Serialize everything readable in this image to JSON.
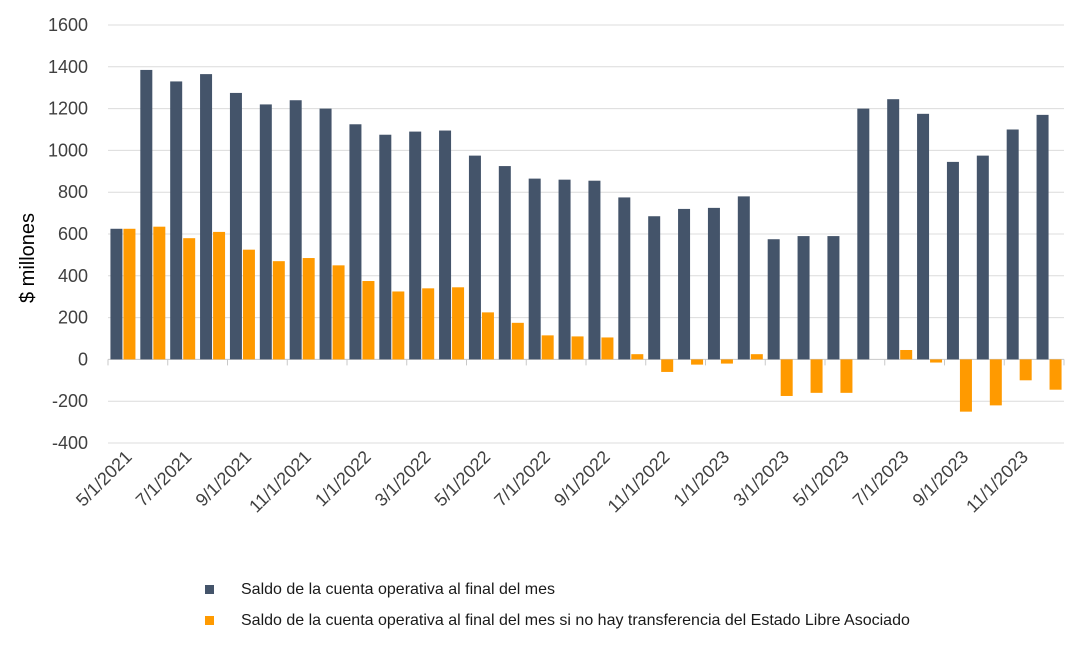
{
  "chart_data": {
    "type": "bar",
    "ylabel": "$ millones",
    "ylim": [
      -400,
      1600
    ],
    "yticks": [
      -400,
      -200,
      0,
      200,
      400,
      600,
      800,
      1000,
      1200,
      1400,
      1600
    ],
    "categories": [
      "5/1/2021",
      "6/1/2021",
      "7/1/2021",
      "8/1/2021",
      "9/1/2021",
      "10/1/2021",
      "11/1/2021",
      "12/1/2021",
      "1/1/2022",
      "2/1/2022",
      "3/1/2022",
      "4/1/2022",
      "5/1/2022",
      "6/1/2022",
      "7/1/2022",
      "8/1/2022",
      "9/1/2022",
      "10/1/2022",
      "11/1/2022",
      "12/1/2022",
      "1/1/2023",
      "2/1/2023",
      "3/1/2023",
      "4/1/2023",
      "5/1/2023",
      "6/1/2023",
      "7/1/2023",
      "8/1/2023",
      "9/1/2023",
      "10/1/2023",
      "11/1/2023",
      "12/1/2023"
    ],
    "xtick_labels": [
      "5/1/2021",
      "7/1/2021",
      "9/1/2021",
      "11/1/2021",
      "1/1/2022",
      "3/1/2022",
      "5/1/2022",
      "7/1/2022",
      "9/1/2022",
      "11/1/2022",
      "1/1/2023",
      "3/1/2023",
      "5/1/2023",
      "7/1/2023",
      "9/1/2023",
      "11/1/2023"
    ],
    "grid": true,
    "legend_position": "bottom",
    "series": [
      {
        "name": "Saldo de la cuenta operativa al final del mes",
        "color": "#44546a",
        "values": [
          625,
          1385,
          1330,
          1365,
          1275,
          1220,
          1240,
          1200,
          1125,
          1075,
          1090,
          1095,
          975,
          925,
          865,
          860,
          855,
          775,
          685,
          720,
          725,
          780,
          575,
          590,
          590,
          1200,
          1245,
          1175,
          945,
          975,
          1100,
          1170
        ]
      },
      {
        "name": "Saldo de la cuenta operativa al final del mes si no hay transferencia del Estado Libre Asociado",
        "color": "#ff9a00",
        "values": [
          625,
          635,
          580,
          610,
          525,
          470,
          485,
          450,
          375,
          325,
          340,
          345,
          225,
          175,
          115,
          110,
          105,
          25,
          -60,
          -25,
          -20,
          25,
          -175,
          -160,
          -160,
          0,
          45,
          -15,
          -250,
          -220,
          -100,
          -145
        ]
      }
    ]
  }
}
